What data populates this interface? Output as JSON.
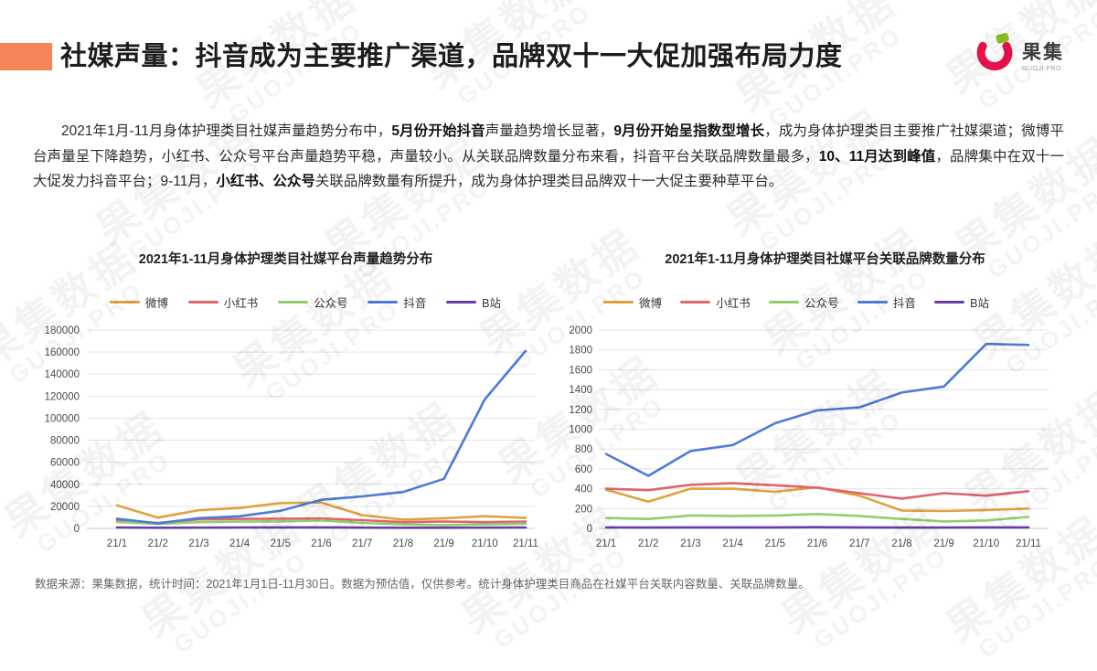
{
  "page": {
    "title": "社媒声量：抖音成为主要推广渠道，品牌双十一大促加强布局力度",
    "logo": {
      "name": "果集",
      "sub": "GUOJI.PRO"
    },
    "watermark": {
      "line1": "果集数据",
      "line2": "GUOJI.PRO"
    },
    "footer": "数据来源：果集数据，统计时间：2021年1月1日-11月30日。数据为预估值，仅供参考。统计身体护理类目商品在社媒平台关联内容数量、关联品牌数量。"
  },
  "colors": {
    "accent": "#F5845A",
    "logo_red": "#E8114B",
    "logo_green": "#8FC31E",
    "weibo": "#DFA23E",
    "xiaohongshu": "#E2636C",
    "gongzhonghao": "#92CD6C",
    "douyin": "#4C7BD9",
    "bilibili": "#6B3BA4",
    "gridline": "#E4E4E4",
    "axis_text": "#4a4a4a"
  },
  "summary": {
    "segments": [
      {
        "t": "2021年1月-11月身体护理类目社媒声量趋势分布中，",
        "b": false
      },
      {
        "t": "5月份开始抖音",
        "b": true
      },
      {
        "t": "声量趋势增长显著，",
        "b": false
      },
      {
        "t": "9月份开始呈指数型增长",
        "b": true
      },
      {
        "t": "，成为身体护理类目主要推广社媒渠道；微博平台声量呈下降趋势，小红书、公众号平台声量趋势平稳，声量较小。从关联品牌数量分布来看，抖音平台关联品牌数量最多，",
        "b": false
      },
      {
        "t": "10、11月达到峰值",
        "b": true
      },
      {
        "t": "，品牌集中在双十一大促发力抖音平台；9-11月，",
        "b": false
      },
      {
        "t": "小红书、公众号",
        "b": true
      },
      {
        "t": "关联品牌数量有所提升，成为身体护理类目品牌双十一大促主要种草平台。",
        "b": false
      }
    ]
  },
  "chart_data": [
    {
      "type": "line",
      "title": "2021年1-11月身体护理类目社媒平台声量趋势分布",
      "xlabel": "",
      "ylabel": "",
      "ylim": [
        0,
        180000
      ],
      "ystep": 20000,
      "grid": true,
      "legend_position": "top",
      "categories": [
        "21/1",
        "21/2",
        "21/3",
        "21/4",
        "21/5",
        "21/6",
        "21/7",
        "21/8",
        "21/9",
        "21/10",
        "21/11"
      ],
      "series": [
        {
          "name": "微博",
          "key": "weibo",
          "color": "#DFA23E",
          "values": [
            21000,
            9800,
            16500,
            18500,
            23000,
            23500,
            12000,
            8000,
            9200,
            11000,
            9500
          ]
        },
        {
          "name": "小红书",
          "key": "xiaohongshu",
          "color": "#E2636C",
          "values": [
            7200,
            5000,
            8200,
            8600,
            8800,
            9000,
            7500,
            5600,
            6200,
            5600,
            6200
          ]
        },
        {
          "name": "公众号",
          "key": "gongzhonghao",
          "color": "#92CD6C",
          "values": [
            5800,
            4000,
            5600,
            6300,
            6300,
            7200,
            5000,
            3600,
            3000,
            3600,
            4300
          ]
        },
        {
          "name": "抖音",
          "key": "douyin",
          "color": "#4C7BD9",
          "values": [
            8800,
            4600,
            9300,
            11000,
            16000,
            26000,
            29000,
            33000,
            45000,
            117000,
            161000
          ]
        },
        {
          "name": "B站",
          "key": "bilibili",
          "color": "#6B3BA4",
          "values": [
            800,
            600,
            700,
            800,
            900,
            900,
            700,
            600,
            600,
            700,
            800
          ]
        }
      ]
    },
    {
      "type": "line",
      "title": "2021年1-11月身体护理类目社媒平台关联品牌数量分布",
      "xlabel": "",
      "ylabel": "",
      "ylim": [
        0,
        2000
      ],
      "ystep": 200,
      "grid": true,
      "legend_position": "top",
      "categories": [
        "21/1",
        "21/2",
        "21/3",
        "21/4",
        "21/5",
        "21/6",
        "21/7",
        "21/8",
        "21/9",
        "21/10",
        "21/11"
      ],
      "series": [
        {
          "name": "微博",
          "key": "weibo",
          "color": "#DFA23E",
          "values": [
            390,
            270,
            400,
            400,
            370,
            415,
            330,
            180,
            175,
            185,
            200
          ]
        },
        {
          "name": "小红书",
          "key": "xiaohongshu",
          "color": "#E2636C",
          "values": [
            400,
            385,
            440,
            455,
            435,
            410,
            355,
            300,
            355,
            330,
            375
          ]
        },
        {
          "name": "公众号",
          "key": "gongzhonghao",
          "color": "#92CD6C",
          "values": [
            105,
            95,
            130,
            125,
            130,
            145,
            125,
            95,
            70,
            80,
            115
          ]
        },
        {
          "name": "抖音",
          "key": "douyin",
          "color": "#4C7BD9",
          "values": [
            750,
            530,
            780,
            840,
            1060,
            1190,
            1220,
            1370,
            1430,
            1860,
            1850
          ]
        },
        {
          "name": "B站",
          "key": "bilibili",
          "color": "#6B3BA4",
          "values": [
            10,
            8,
            10,
            10,
            10,
            12,
            10,
            8,
            8,
            10,
            10
          ]
        }
      ]
    }
  ]
}
